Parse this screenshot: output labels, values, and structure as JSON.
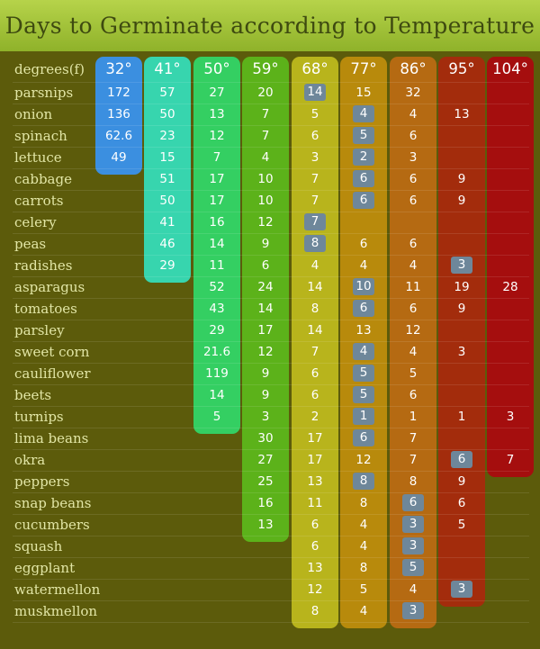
{
  "title": "Days to Germinate according to Temperature",
  "chart_data": {
    "type": "table",
    "title": "Days to Germinate according to Temperature",
    "row_header": "degrees(f)",
    "columns": [
      "32°",
      "41°",
      "50°",
      "59°",
      "68°",
      "77°",
      "86°",
      "95°",
      "104°"
    ],
    "column_colors": [
      "#3b8fe0",
      "#37d5ae",
      "#34cf62",
      "#5cb21a",
      "#b8b41c",
      "#b88a0c",
      "#b56a12",
      "#a32c0c",
      "#a50e0e"
    ],
    "highlight_color": "#6e879a",
    "rows": [
      {
        "name": "parsnips",
        "values": [
          "172",
          "57",
          "27",
          "20",
          "14",
          "15",
          "32",
          "",
          ""
        ],
        "highlight": [
          4
        ]
      },
      {
        "name": "onion",
        "values": [
          "136",
          "50",
          "13",
          "7",
          "5",
          "4",
          "4",
          "13",
          ""
        ],
        "highlight": [
          5
        ]
      },
      {
        "name": "spinach",
        "values": [
          "62.6",
          "23",
          "12",
          "7",
          "6",
          "5",
          "6",
          "",
          ""
        ],
        "highlight": [
          5
        ]
      },
      {
        "name": "lettuce",
        "values": [
          "49",
          "15",
          "7",
          "4",
          "3",
          "2",
          "3",
          "",
          ""
        ],
        "highlight": [
          5
        ]
      },
      {
        "name": "cabbage",
        "values": [
          "",
          "51",
          "17",
          "10",
          "7",
          "6",
          "6",
          "9",
          ""
        ],
        "highlight": [
          5
        ]
      },
      {
        "name": "carrots",
        "values": [
          "",
          "50",
          "17",
          "10",
          "7",
          "6",
          "6",
          "9",
          ""
        ],
        "highlight": [
          5
        ]
      },
      {
        "name": "celery",
        "values": [
          "",
          "41",
          "16",
          "12",
          "7",
          "",
          "",
          "",
          ""
        ],
        "highlight": [
          4
        ]
      },
      {
        "name": "peas",
        "values": [
          "",
          "46",
          "14",
          "9",
          "8",
          "6",
          "6",
          "",
          ""
        ],
        "highlight": [
          4
        ]
      },
      {
        "name": "radishes",
        "values": [
          "",
          "29",
          "11",
          "6",
          "4",
          "4",
          "4",
          "3",
          ""
        ],
        "highlight": [
          7
        ]
      },
      {
        "name": "asparagus",
        "values": [
          "",
          "",
          "52",
          "24",
          "14",
          "10",
          "11",
          "19",
          "28"
        ],
        "highlight": [
          5
        ]
      },
      {
        "name": "tomatoes",
        "values": [
          "",
          "",
          "43",
          "14",
          "8",
          "6",
          "6",
          "9",
          ""
        ],
        "highlight": [
          5
        ]
      },
      {
        "name": "parsley",
        "values": [
          "",
          "",
          "29",
          "17",
          "14",
          "13",
          "12",
          "",
          ""
        ],
        "highlight": []
      },
      {
        "name": "sweet corn",
        "values": [
          "",
          "",
          "21.6",
          "12",
          "7",
          "4",
          "4",
          "3",
          ""
        ],
        "highlight": [
          5
        ]
      },
      {
        "name": "cauliflower",
        "values": [
          "",
          "",
          "119",
          "9",
          "6",
          "5",
          "5",
          "",
          ""
        ],
        "highlight": [
          5
        ]
      },
      {
        "name": "beets",
        "values": [
          "",
          "",
          "14",
          "9",
          "6",
          "5",
          "6",
          "",
          ""
        ],
        "highlight": [
          5
        ]
      },
      {
        "name": "turnips",
        "values": [
          "",
          "",
          "5",
          "3",
          "2",
          "1",
          "1",
          "1",
          "3"
        ],
        "highlight": [
          5
        ]
      },
      {
        "name": "lima beans",
        "values": [
          "",
          "",
          "",
          "30",
          "17",
          "6",
          "7",
          "",
          ""
        ],
        "highlight": [
          5
        ]
      },
      {
        "name": "okra",
        "values": [
          "",
          "",
          "",
          "27",
          "17",
          "12",
          "7",
          "6",
          "7"
        ],
        "highlight": [
          7
        ]
      },
      {
        "name": "peppers",
        "values": [
          "",
          "",
          "",
          "25",
          "13",
          "8",
          "8",
          "9",
          ""
        ],
        "highlight": [
          5
        ]
      },
      {
        "name": "snap beans",
        "values": [
          "",
          "",
          "",
          "16",
          "11",
          "8",
          "6",
          "6",
          ""
        ],
        "highlight": [
          6
        ]
      },
      {
        "name": "cucumbers",
        "values": [
          "",
          "",
          "",
          "13",
          "6",
          "4",
          "3",
          "5",
          ""
        ],
        "highlight": [
          6
        ]
      },
      {
        "name": "squash",
        "values": [
          "",
          "",
          "",
          "",
          "6",
          "4",
          "3",
          "",
          ""
        ],
        "highlight": [
          6
        ]
      },
      {
        "name": "eggplant",
        "values": [
          "",
          "",
          "",
          "",
          "13",
          "8",
          "5",
          "",
          ""
        ],
        "highlight": [
          6
        ]
      },
      {
        "name": "watermellon",
        "values": [
          "",
          "",
          "",
          "",
          "12",
          "5",
          "4",
          "3",
          ""
        ],
        "highlight": [
          7
        ]
      },
      {
        "name": "muskmellon",
        "values": [
          "",
          "",
          "",
          "",
          "8",
          "4",
          "3",
          "",
          ""
        ],
        "highlight": [
          6
        ]
      }
    ]
  }
}
